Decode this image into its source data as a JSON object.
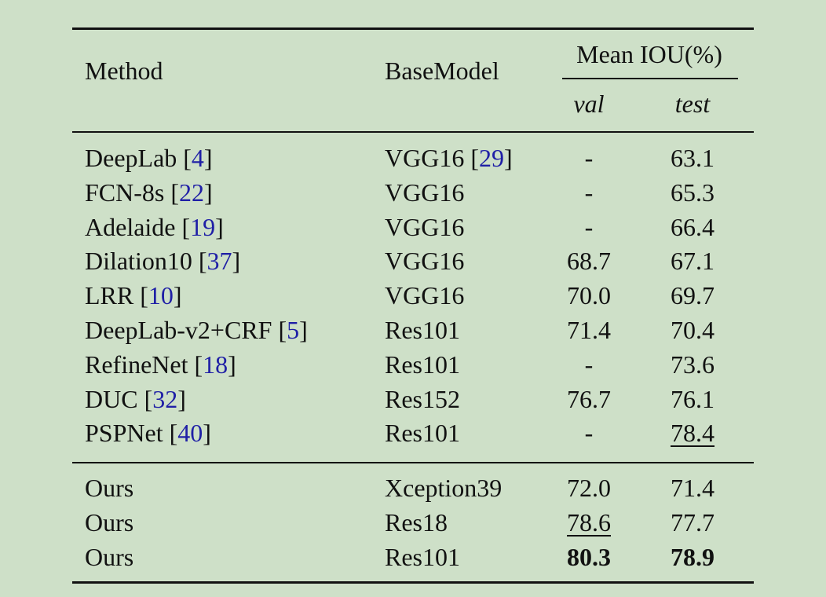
{
  "brackets": [
    "[",
    "]"
  ],
  "header": {
    "method": "Method",
    "base_model": "BaseModel",
    "metric": "Mean IOU(%)",
    "val": "val",
    "test": "test"
  },
  "groups": [
    [
      {
        "method": "DeepLab",
        "method_cite": "4",
        "base": "VGG16",
        "base_cite": "29",
        "val": "-",
        "test": "63.1"
      },
      {
        "method": "FCN-8s",
        "method_cite": "22",
        "base": "VGG16",
        "val": "-",
        "test": "65.3"
      },
      {
        "method": "Adelaide",
        "method_cite": "19",
        "base": "VGG16",
        "val": "-",
        "test": "66.4"
      },
      {
        "method": "Dilation10",
        "method_cite": "37",
        "base": "VGG16",
        "val": "68.7",
        "test": "67.1"
      },
      {
        "method": "LRR",
        "method_cite": "10",
        "base": "VGG16",
        "val": "70.0",
        "test": "69.7"
      },
      {
        "method": "DeepLab-v2+CRF",
        "method_cite": "5",
        "base": "Res101",
        "val": "71.4",
        "test": "70.4"
      },
      {
        "method": "RefineNet",
        "method_cite": "18",
        "base": "Res101",
        "val": "-",
        "test": "73.6"
      },
      {
        "method": "DUC",
        "method_cite": "32",
        "base": "Res152",
        "val": "76.7",
        "test": "76.1"
      },
      {
        "method": "PSPNet",
        "method_cite": "40",
        "base": "Res101",
        "val": "-",
        "test": "78.4",
        "test_style": "underline"
      }
    ],
    [
      {
        "method": "Ours",
        "base": "Xception39",
        "val": "72.0",
        "test": "71.4"
      },
      {
        "method": "Ours",
        "base": "Res18",
        "val": "78.6",
        "test": "77.7",
        "val_style": "underline"
      },
      {
        "method": "Ours",
        "base": "Res101",
        "val": "80.3",
        "test": "78.9",
        "val_style": "bold",
        "test_style": "bold"
      }
    ]
  ]
}
